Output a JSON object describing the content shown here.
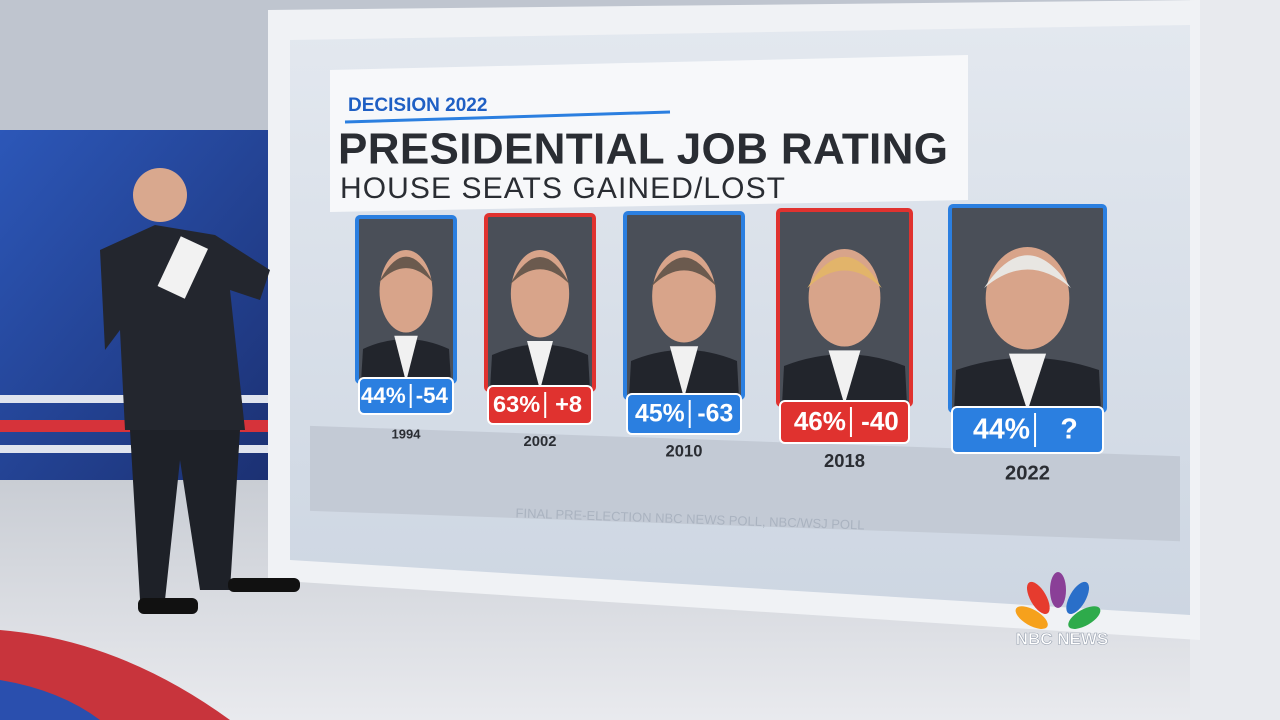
{
  "header": {
    "brand": "DECISION 2022",
    "title": "PRESIDENTIAL JOB RATING",
    "subtitle": "HOUSE SEATS GAINED/LOST"
  },
  "cards": [
    {
      "year": "1994",
      "rating": "44%",
      "seats": "-54",
      "color": "#2b7fe0"
    },
    {
      "year": "2002",
      "rating": "63%",
      "seats": "+8",
      "color": "#e0322f"
    },
    {
      "year": "2010",
      "rating": "45%",
      "seats": "-63",
      "color": "#2b7fe0"
    },
    {
      "year": "2018",
      "rating": "46%",
      "seats": "-40",
      "color": "#e0322f"
    },
    {
      "year": "2022",
      "rating": "44%",
      "seats": "?",
      "color": "#2b7fe0"
    }
  ],
  "source": "FINAL PRE-ELECTION NBC NEWS POLL, NBC/WSJ POLL",
  "logo": "NBC NEWS"
}
